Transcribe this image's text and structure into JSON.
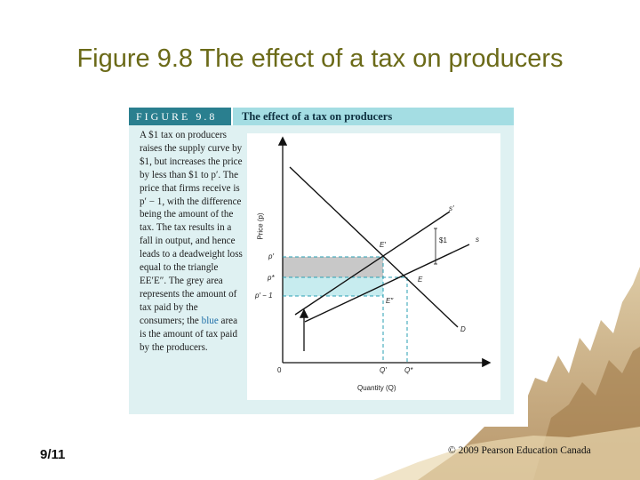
{
  "slide": {
    "title": "Figure 9.8 The effect of a tax on producers",
    "page_number": "9/11",
    "copyright": "© 2009 Pearson Education Canada"
  },
  "figure": {
    "header_label": "FIGURE 9.8",
    "header_title": "The effect of a tax on producers",
    "caption": {
      "part1": "A $1 tax on producers raises the supply curve by $1, but increases the price by less than $1 to p′. The price that firms receive is p′ − 1, with the difference being the amount of the tax. The tax results in a fall in output, and hence leads to a deadweight loss equal to the triangle EE′E″. The grey area represents the amount of tax paid by the consumers; the ",
      "blue_word": "blue",
      "part2": " area is the amount of tax paid by the producers."
    }
  },
  "diagram": {
    "y_axis_label": "Price (p)",
    "x_axis_label": "Quantity (Q)",
    "origin_label": "0",
    "price_labels": {
      "p_prime": "p′",
      "p_star": "p*",
      "p_prime_minus_1": "p′ − 1"
    },
    "quantity_labels": {
      "q_prime": "Q′",
      "q_star": "Q*"
    },
    "point_labels": {
      "e_prime": "E′",
      "e": "E",
      "e_double_prime": "E″"
    },
    "curve_labels": {
      "supply_after_tax": "s′",
      "supply": "s",
      "demand": "D",
      "tax_amount": "$1"
    },
    "colors": {
      "grey_area": "#c8c8c8",
      "blue_area": "#c7ecef",
      "dashed": "#2a9fb3",
      "lines": "#111111"
    }
  }
}
